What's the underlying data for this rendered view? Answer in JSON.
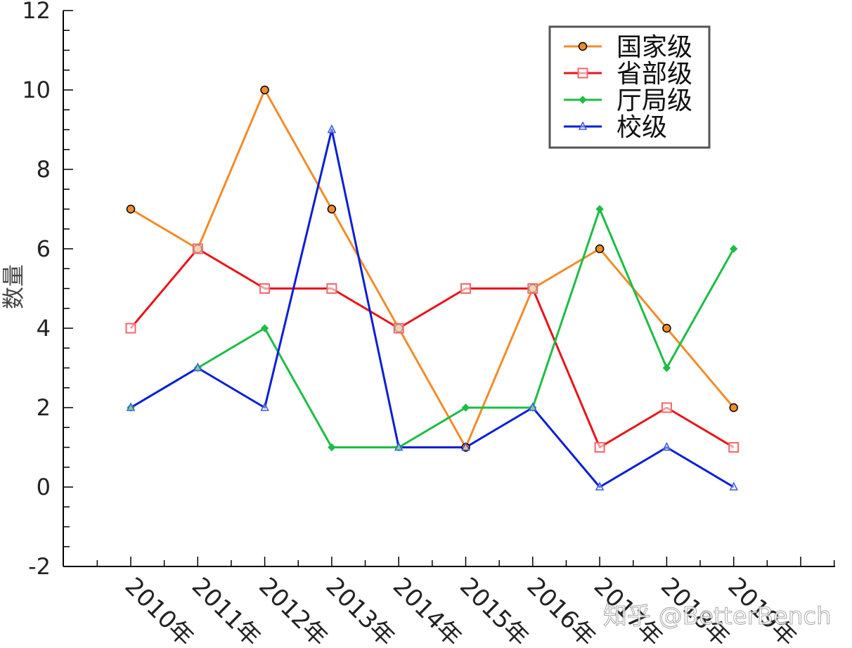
{
  "chart_data": {
    "type": "line",
    "categories": [
      "2010年",
      "2011年",
      "2012年",
      "2013年",
      "2014年",
      "2015年",
      "2016年",
      "2017年",
      "2018年",
      "2019年"
    ],
    "series": [
      {
        "name": "国家级",
        "color": "#f28c28",
        "marker": "circle",
        "values": [
          7,
          6,
          10,
          7,
          4,
          1,
          5,
          6,
          4,
          2
        ]
      },
      {
        "name": "省部级",
        "color": "#e8141a",
        "marker": "square",
        "values": [
          4,
          6,
          5,
          5,
          4,
          5,
          5,
          1,
          2,
          1
        ]
      },
      {
        "name": "厅局级",
        "color": "#1dbd45",
        "marker": "diamond",
        "values": [
          2,
          3,
          4,
          1,
          1,
          2,
          2,
          7,
          3,
          6
        ]
      },
      {
        "name": "校级",
        "color": "#0a1ed8",
        "marker": "triangle",
        "values": [
          2,
          3,
          2,
          9,
          1,
          1,
          2,
          0,
          1,
          0
        ]
      }
    ],
    "ylabel": "数量",
    "ylim": [
      -2,
      12
    ],
    "yticks": [
      -2,
      0,
      2,
      4,
      6,
      8,
      10,
      12
    ],
    "legend_position": "top-right",
    "grid": false
  },
  "watermark": "知乎 @BetterBench"
}
